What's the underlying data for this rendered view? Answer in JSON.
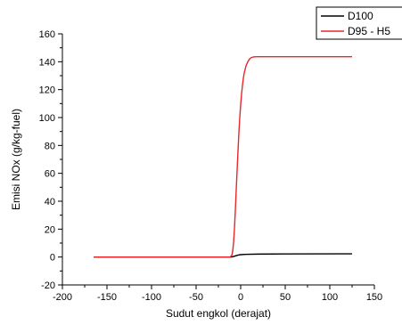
{
  "chart_data": {
    "type": "line",
    "title": "",
    "xlabel": "Sudut engkol (derajat)",
    "ylabel": "Emisi NOx (g/kg-fuel)",
    "xlim": [
      -200,
      150
    ],
    "ylim": [
      -20,
      160
    ],
    "xticks": [
      -200,
      -150,
      -100,
      -50,
      0,
      50,
      100,
      150
    ],
    "yticks": [
      -20,
      0,
      20,
      40,
      60,
      80,
      100,
      120,
      140,
      160
    ],
    "grid": false,
    "legend_position": "top-right",
    "series": [
      {
        "name": "D100",
        "color": "#000000",
        "x": [
          -165,
          -20,
          -14,
          -12,
          -10,
          -8,
          -6,
          -4,
          -2,
          0,
          5,
          10,
          20,
          50,
          125
        ],
        "y": [
          0,
          0,
          0,
          0,
          0.1,
          0.4,
          0.8,
          1.2,
          1.5,
          1.7,
          1.9,
          2.0,
          2.1,
          2.2,
          2.3
        ]
      },
      {
        "name": "D95 - H5",
        "color": "#e8272a",
        "x": [
          -165,
          -20,
          -12,
          -10,
          -9,
          -8,
          -7,
          -6,
          -5,
          -4,
          -3,
          -2,
          -1,
          0,
          1,
          2,
          3,
          4,
          6,
          8,
          10,
          12,
          15,
          20,
          30,
          50,
          125
        ],
        "y": [
          0,
          0,
          0,
          1,
          4,
          10,
          20,
          33,
          48,
          62,
          76,
          89,
          100,
          109,
          117,
          123,
          128,
          132,
          137,
          140,
          142,
          143,
          143.5,
          143.6,
          143.6,
          143.6,
          143.6
        ]
      }
    ]
  }
}
